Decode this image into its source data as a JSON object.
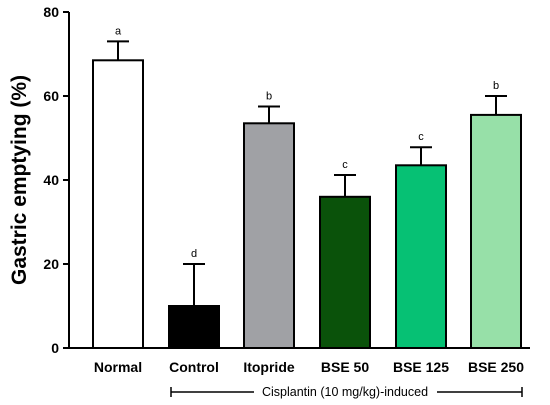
{
  "chart_data": {
    "type": "bar",
    "categories": [
      "Normal",
      "Control",
      "Itopride",
      "BSE 50",
      "BSE 125",
      "BSE 250"
    ],
    "values": [
      68.5,
      10,
      53.5,
      36,
      43.5,
      55.5
    ],
    "errors": [
      4.5,
      10,
      4,
      5.2,
      4.3,
      4.5
    ],
    "significance": [
      "a",
      "d",
      "b",
      "c",
      "c",
      "b"
    ],
    "colors": [
      "#ffffff",
      "#000000",
      "#a0a1a5",
      "#0a520a",
      "#06c174",
      "#97e0a8"
    ],
    "title": "",
    "xlabel": "",
    "ylabel": "Gastric emptying (%)",
    "ylim": [
      0,
      80
    ],
    "yticks": [
      0,
      20,
      40,
      60,
      80
    ],
    "group_label": "Cisplantin (10 mg/kg)-induced",
    "grid": false
  }
}
